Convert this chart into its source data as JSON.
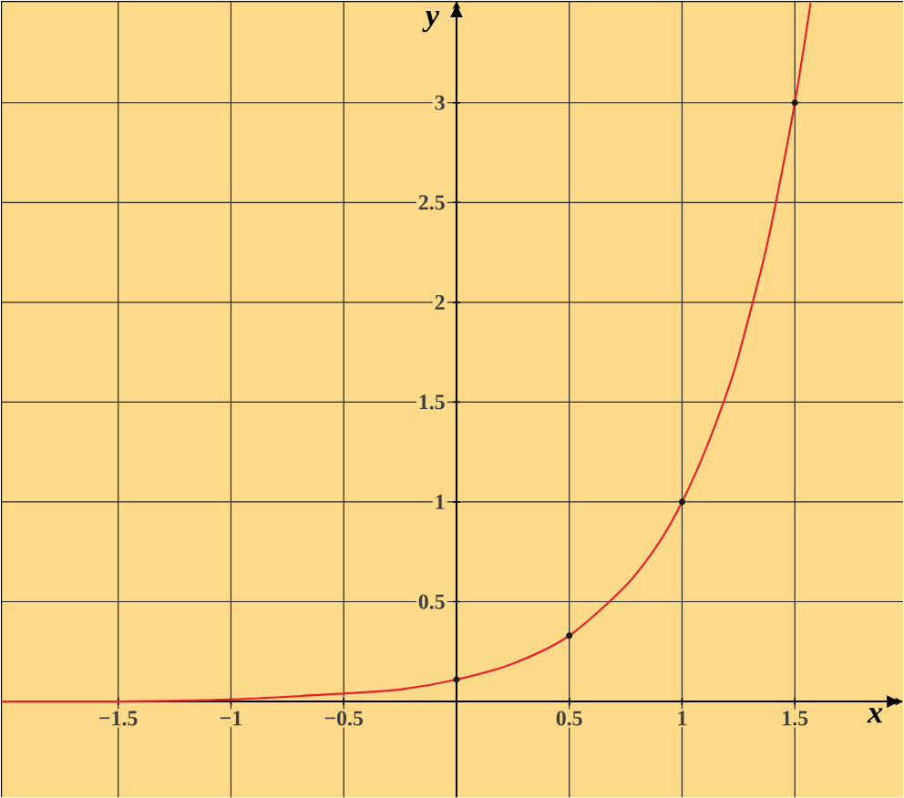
{
  "chart_data": {
    "type": "line",
    "xlabel": "x",
    "ylabel": "y",
    "xlim": [
      -2.02,
      1.98
    ],
    "ylim": [
      -0.48,
      3.51
    ],
    "xticks": [
      {
        "value": -1.5,
        "label": "−1.5"
      },
      {
        "value": -1,
        "label": "−1"
      },
      {
        "value": -0.5,
        "label": "−0.5"
      },
      {
        "value": 0,
        "label": null
      },
      0.5,
      1,
      1.5
    ],
    "yticks": [
      {
        "value": 0,
        "label": null
      },
      0.5,
      1,
      1.5,
      2,
      2.5,
      3
    ],
    "grid": true,
    "series": [
      {
        "color": "#e8202a",
        "x": [
          -2.02,
          -1.5,
          -1,
          -0.5,
          -0.25,
          0,
          0.25,
          0.5,
          0.75,
          0.9,
          1,
          1.1,
          1.2,
          1.25,
          1.35,
          1.4,
          1.5,
          1.57
        ],
        "values": [
          0,
          0,
          0.01,
          0.04,
          0.06,
          0.11,
          0.19,
          0.33,
          0.58,
          0.8,
          1,
          1.25,
          1.55,
          1.73,
          2.16,
          2.41,
          3,
          3.5
        ]
      },
      {
        "type": "scatter",
        "color": "#1a1a1a",
        "x": [
          0,
          0.5,
          1,
          1.5
        ],
        "values": [
          0.11,
          0.33,
          1,
          3
        ]
      }
    ]
  }
}
